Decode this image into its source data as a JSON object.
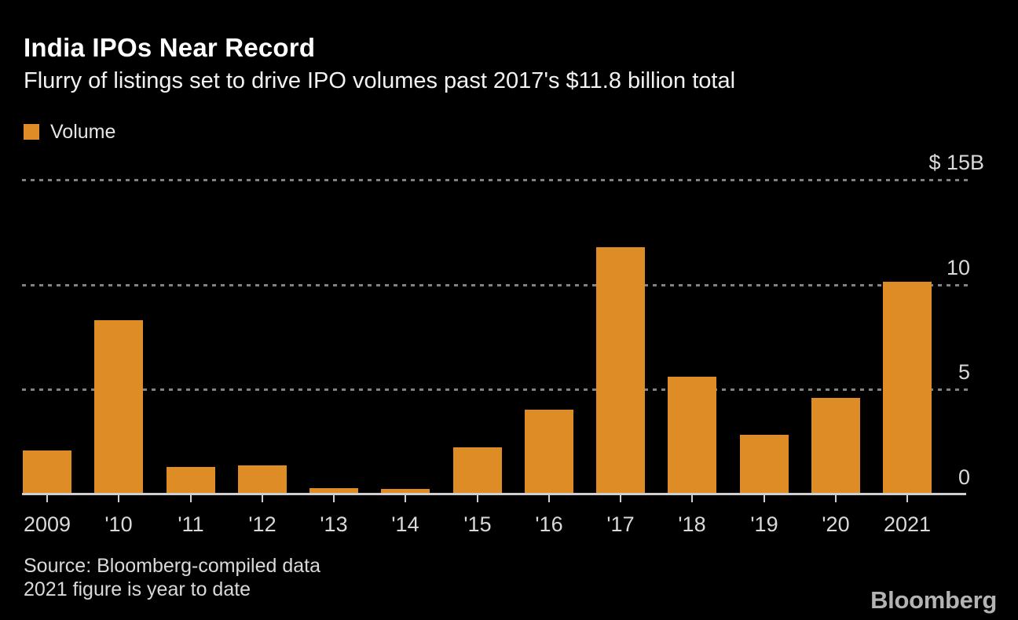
{
  "header": {
    "title": "India IPOs Near Record",
    "subtitle": "Flurry of listings set to drive IPO volumes past 2017's $11.8 billion total"
  },
  "legend": {
    "label": "Volume",
    "swatch_color": "#DE8C26"
  },
  "footer": {
    "source_line1": "Source: Bloomberg-compiled data",
    "source_line2": "2021 figure is year to date",
    "logo": "Bloomberg"
  },
  "chart_data": {
    "type": "bar",
    "title": "India IPOs Near Record",
    "subtitle": "Flurry of listings set to drive IPO volumes past 2017's $11.8 billion total",
    "series_name": "Volume",
    "categories": [
      "2009",
      "'10",
      "'11",
      "'12",
      "'13",
      "'14",
      "'15",
      "'16",
      "'17",
      "'18",
      "'19",
      "'20",
      "2021"
    ],
    "values": [
      2.1,
      8.3,
      1.3,
      1.4,
      0.3,
      0.25,
      2.25,
      4.05,
      11.8,
      5.6,
      2.85,
      4.6,
      10.15
    ],
    "unit": "billions of US dollars",
    "xlabel": "",
    "ylabel": "$B",
    "ylim": [
      0,
      15
    ],
    "y_ticks": [
      {
        "value": 15,
        "label": "$ 15",
        "suffix": "B"
      },
      {
        "value": 10,
        "label": "10",
        "suffix": ""
      },
      {
        "value": 5,
        "label": "5",
        "suffix": ""
      },
      {
        "value": 0,
        "label": "0",
        "suffix": ""
      }
    ],
    "gridline_values": [
      15,
      10,
      5
    ],
    "grid": "dotted-horizontal",
    "legend_position": "top-left",
    "bar_color": "#DE8C26",
    "background_color": "#000000"
  }
}
